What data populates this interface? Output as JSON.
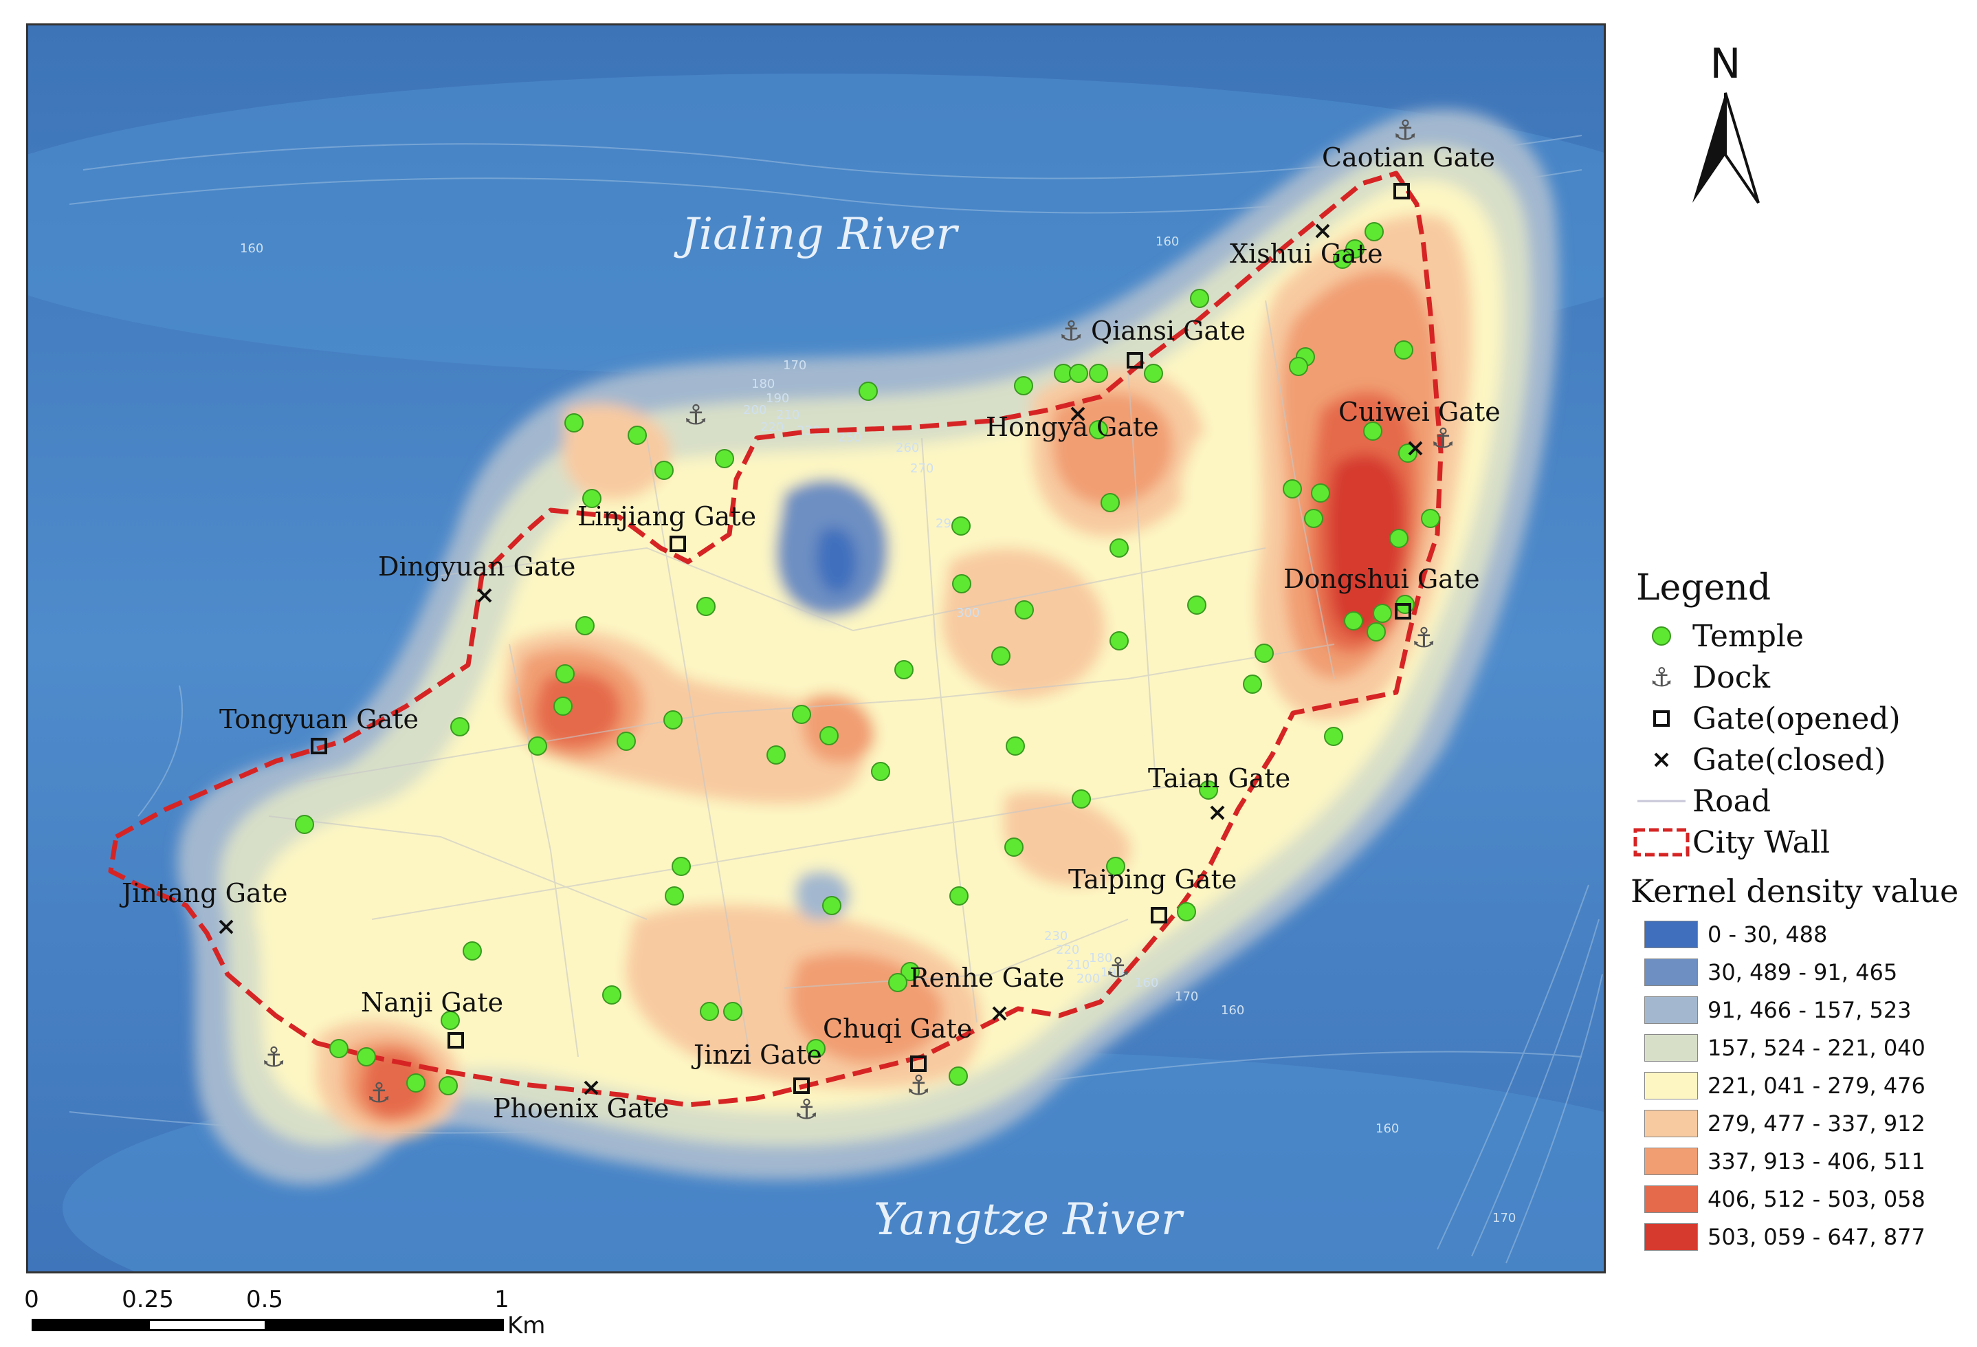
{
  "rivers": {
    "north": "Jialing River",
    "south": "Yangtze River"
  },
  "gates": [
    {
      "name": "Caotian Gate",
      "status": "opened"
    },
    {
      "name": "Xishui Gate",
      "status": "closed"
    },
    {
      "name": "Qiansi Gate",
      "status": "opened"
    },
    {
      "name": "Hongya Gate",
      "status": "closed"
    },
    {
      "name": "Cuiwei Gate",
      "status": "closed"
    },
    {
      "name": "Linjiang Gate",
      "status": "opened"
    },
    {
      "name": "Dingyuan Gate",
      "status": "closed"
    },
    {
      "name": "Dongshui Gate",
      "status": "opened"
    },
    {
      "name": "Tongyuan Gate",
      "status": "opened"
    },
    {
      "name": "Taian Gate",
      "status": "closed"
    },
    {
      "name": "Jintang Gate",
      "status": "closed"
    },
    {
      "name": "Taiping Gate",
      "status": "opened"
    },
    {
      "name": "Renhe Gate",
      "status": "closed"
    },
    {
      "name": "Nanji Gate",
      "status": "opened"
    },
    {
      "name": "Chuqi Gate",
      "status": "opened"
    },
    {
      "name": "Jinzi Gate",
      "status": "opened"
    },
    {
      "name": "Phoenix Gate",
      "status": "closed"
    }
  ],
  "contour_labels": [
    "160",
    "160",
    "170",
    "180",
    "190",
    "200",
    "210",
    "220",
    "230",
    "250",
    "260",
    "270",
    "290",
    "300",
    "160",
    "170",
    "180",
    "190",
    "200",
    "210",
    "220",
    "230",
    "170",
    "160",
    "160"
  ],
  "north_arrow": {
    "label": "N"
  },
  "legend": {
    "title": "Legend",
    "items": [
      {
        "label": "Temple",
        "symbol": "green-dot"
      },
      {
        "label": "Dock",
        "symbol": "anchor"
      },
      {
        "label": "Gate(opened)",
        "symbol": "square"
      },
      {
        "label": "Gate(closed)",
        "symbol": "x"
      },
      {
        "label": "Road",
        "symbol": "line"
      },
      {
        "label": "City Wall",
        "symbol": "dashed-red-box"
      }
    ],
    "density_title": "Kernel density value",
    "density_classes": [
      {
        "range": "0 - 30, 488",
        "color": "#3f6fbd"
      },
      {
        "range": "30, 489 - 91, 465",
        "color": "#6d8fc2"
      },
      {
        "range": "91, 466 - 157, 523",
        "color": "#a3b8cf"
      },
      {
        "range": "157, 524 - 221, 040",
        "color": "#d8dfc8"
      },
      {
        "range": "221, 041 - 279, 476",
        "color": "#fdf6c3"
      },
      {
        "range": "279, 477 - 337, 912",
        "color": "#f8caa0"
      },
      {
        "range": "337, 913 - 406, 511",
        "color": "#f19e72"
      },
      {
        "range": "406, 512 - 503, 058",
        "color": "#e56a4c"
      },
      {
        "range": "503, 059 - 647, 877",
        "color": "#d63a2f"
      }
    ]
  },
  "scale_bar": {
    "ticks": [
      "0",
      "0.25",
      "0.5",
      "1"
    ],
    "unit": "Km"
  },
  "colors": {
    "water": "#4a86c6",
    "wall": "#d62424",
    "temple": "#5ee832"
  }
}
